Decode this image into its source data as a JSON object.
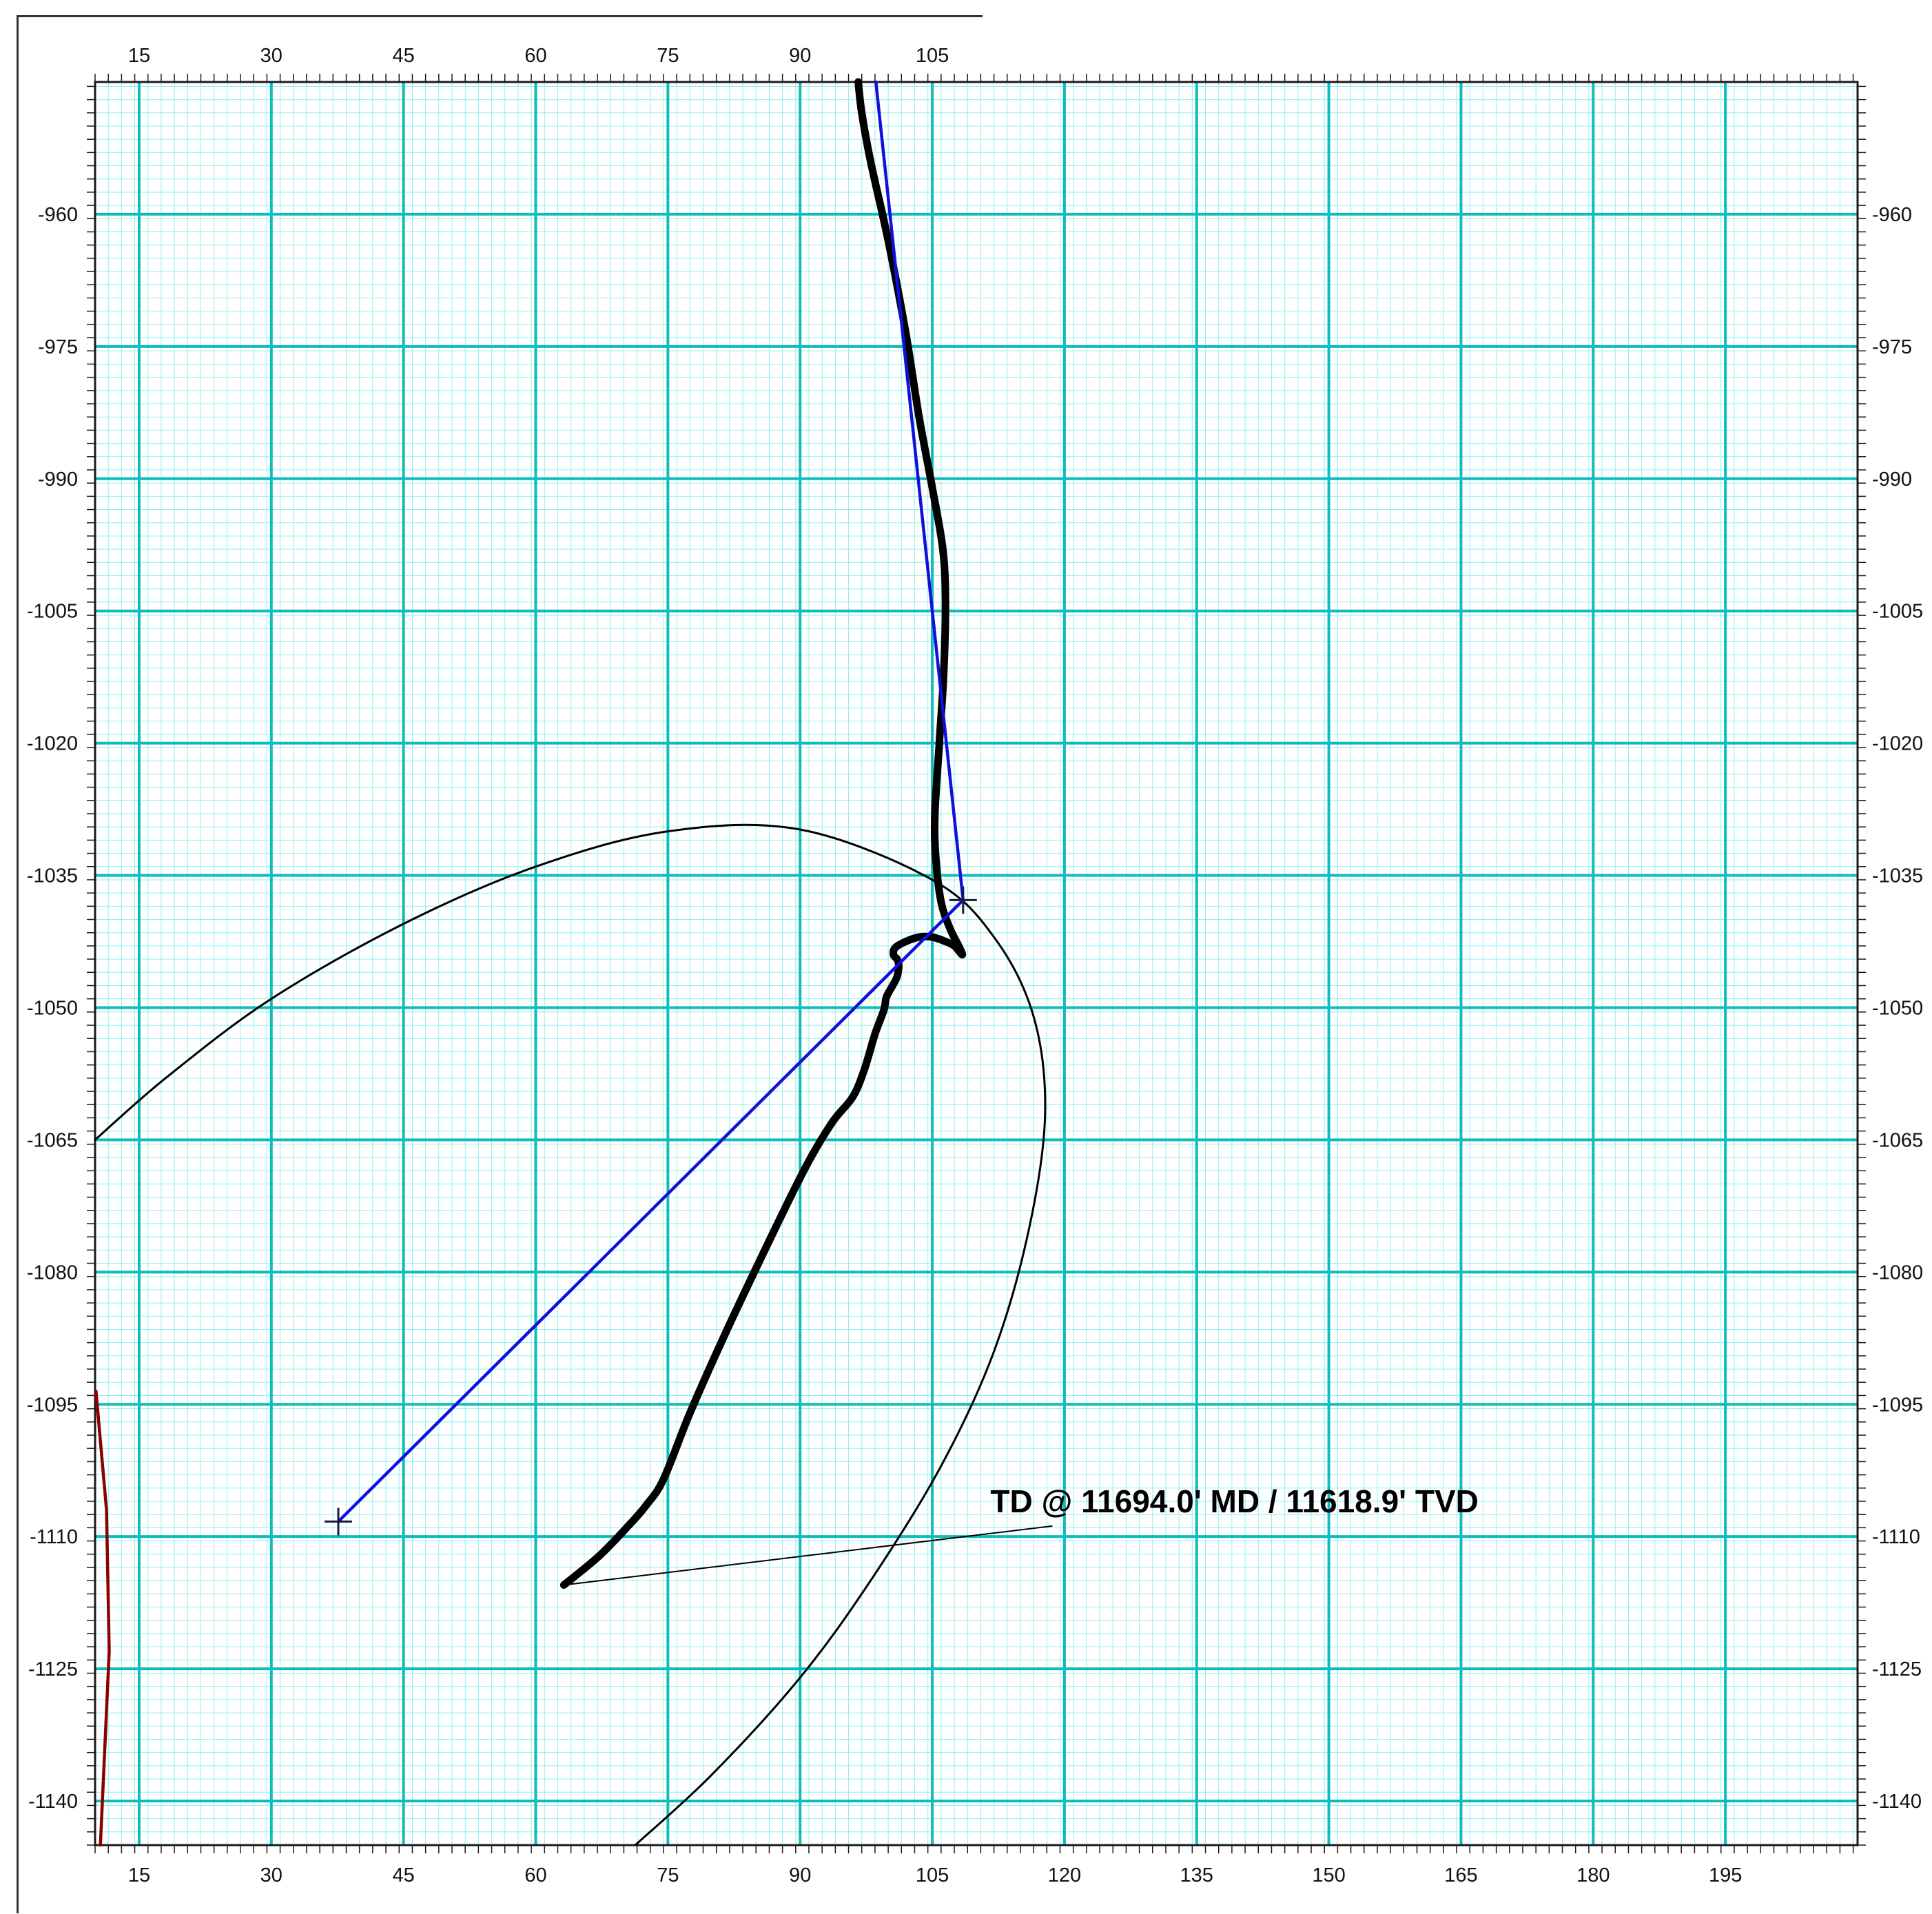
{
  "chart_data": {
    "type": "line",
    "title": "",
    "xlabel": "",
    "ylabel": "",
    "xlim": [
      10,
      210
    ],
    "ylim": [
      -1145,
      -945
    ],
    "x_ticks": [
      15,
      30,
      45,
      60,
      75,
      90,
      105,
      120,
      135,
      150,
      165,
      180,
      195
    ],
    "x_ticks_top": [
      15,
      30,
      45,
      60,
      75,
      90,
      105
    ],
    "y_ticks": [
      -960,
      -975,
      -990,
      -1005,
      -1020,
      -1035,
      -1050,
      -1065,
      -1080,
      -1095,
      -1110,
      -1125,
      -1140
    ],
    "x_tick_labels": [
      "15",
      "30",
      "45",
      "60",
      "75",
      "90",
      "105",
      "120",
      "135",
      "150",
      "165",
      "180",
      "195"
    ],
    "y_tick_labels": [
      "-960",
      "-975",
      "-990",
      "-1005",
      "-1020",
      "-1035",
      "-1050",
      "-1065",
      "-1080",
      "-1095",
      "-1110",
      "-1125",
      "-1140"
    ],
    "grid": {
      "major_step": 15,
      "minor_step": 1.5,
      "major_color": "#0fbcbc",
      "minor_color": "#8ff0f0"
    },
    "series": [
      {
        "role": "actual-well-path",
        "color": "#000000",
        "points": [
          [
            96.6,
            -945
          ],
          [
            97,
            -948.5
          ],
          [
            98,
            -954
          ],
          [
            100,
            -963
          ],
          [
            102,
            -973.5
          ],
          [
            103.5,
            -983
          ],
          [
            105,
            -991
          ],
          [
            106.2,
            -998
          ],
          [
            106.5,
            -1004
          ],
          [
            106.3,
            -1012
          ],
          [
            105.8,
            -1020
          ],
          [
            105.3,
            -1028
          ],
          [
            105.4,
            -1033
          ],
          [
            106,
            -1038
          ],
          [
            107,
            -1041
          ],
          [
            108,
            -1043
          ],
          [
            108.4,
            -1044
          ],
          [
            107.5,
            -1043
          ],
          [
            106.5,
            -1042.5
          ],
          [
            105,
            -1042
          ],
          [
            103.5,
            -1042
          ],
          [
            102,
            -1042.5
          ],
          [
            100.8,
            -1043.2
          ],
          [
            100.6,
            -1044
          ],
          [
            101,
            -1044.5
          ],
          [
            101.2,
            -1045.2
          ],
          [
            101,
            -1046.5
          ],
          [
            100.5,
            -1047.5
          ],
          [
            99.8,
            -1048.8
          ],
          [
            99.5,
            -1050.3
          ],
          [
            98.5,
            -1053
          ],
          [
            97.3,
            -1057
          ],
          [
            96,
            -1060.1
          ],
          [
            93.8,
            -1062.8
          ],
          [
            91.5,
            -1066.5
          ],
          [
            89.4,
            -1070.5
          ],
          [
            86,
            -1077.5
          ],
          [
            81.5,
            -1087
          ],
          [
            77.5,
            -1096
          ],
          [
            74.5,
            -1103.5
          ],
          [
            72.5,
            -1106.5
          ],
          [
            70.5,
            -1108.8
          ],
          [
            67.2,
            -1112.2
          ],
          [
            63.2,
            -1115.5
          ]
        ]
      },
      {
        "role": "planned-well-path",
        "color": "#1010dd",
        "points": [
          [
            98.6,
            -945
          ],
          [
            108.5,
            -1037.8
          ],
          [
            37.6,
            -1108.3
          ]
        ]
      },
      {
        "role": "target-ellipse",
        "color": "#000000",
        "points": [
          [
            10,
            -1065
          ],
          [
            18,
            -1058
          ],
          [
            30,
            -1049
          ],
          [
            45,
            -1040.5
          ],
          [
            60,
            -1034
          ],
          [
            75,
            -1030
          ],
          [
            90,
            -1029.8
          ],
          [
            105,
            -1035.5
          ],
          [
            112,
            -1042
          ],
          [
            116.5,
            -1051
          ],
          [
            117.8,
            -1062
          ],
          [
            116,
            -1075
          ],
          [
            112,
            -1089
          ],
          [
            106,
            -1102
          ],
          [
            98,
            -1115
          ],
          [
            90,
            -1126
          ],
          [
            80,
            -1137
          ],
          [
            71.3,
            -1145
          ]
        ]
      },
      {
        "role": "offset-well",
        "color": "#8b0000",
        "points": [
          [
            10.1,
            -1093.5
          ],
          [
            11.3,
            -1107
          ],
          [
            11.6,
            -1123
          ],
          [
            10.6,
            -1145
          ]
        ]
      }
    ],
    "markers": [
      {
        "x": 108.5,
        "y": -1037.8,
        "shape": "cross",
        "color": "#1a1a3a"
      },
      {
        "x": 37.6,
        "y": -1108.3,
        "shape": "cross",
        "color": "#1a1a3a"
      }
    ],
    "annotations": [
      {
        "text": "TD @ 11694.0' MD / 11618.9' TVD",
        "anchor_x": 63.2,
        "anchor_y": -1115.5,
        "label_x": 115.5,
        "label_y": -1108.8
      }
    ]
  }
}
